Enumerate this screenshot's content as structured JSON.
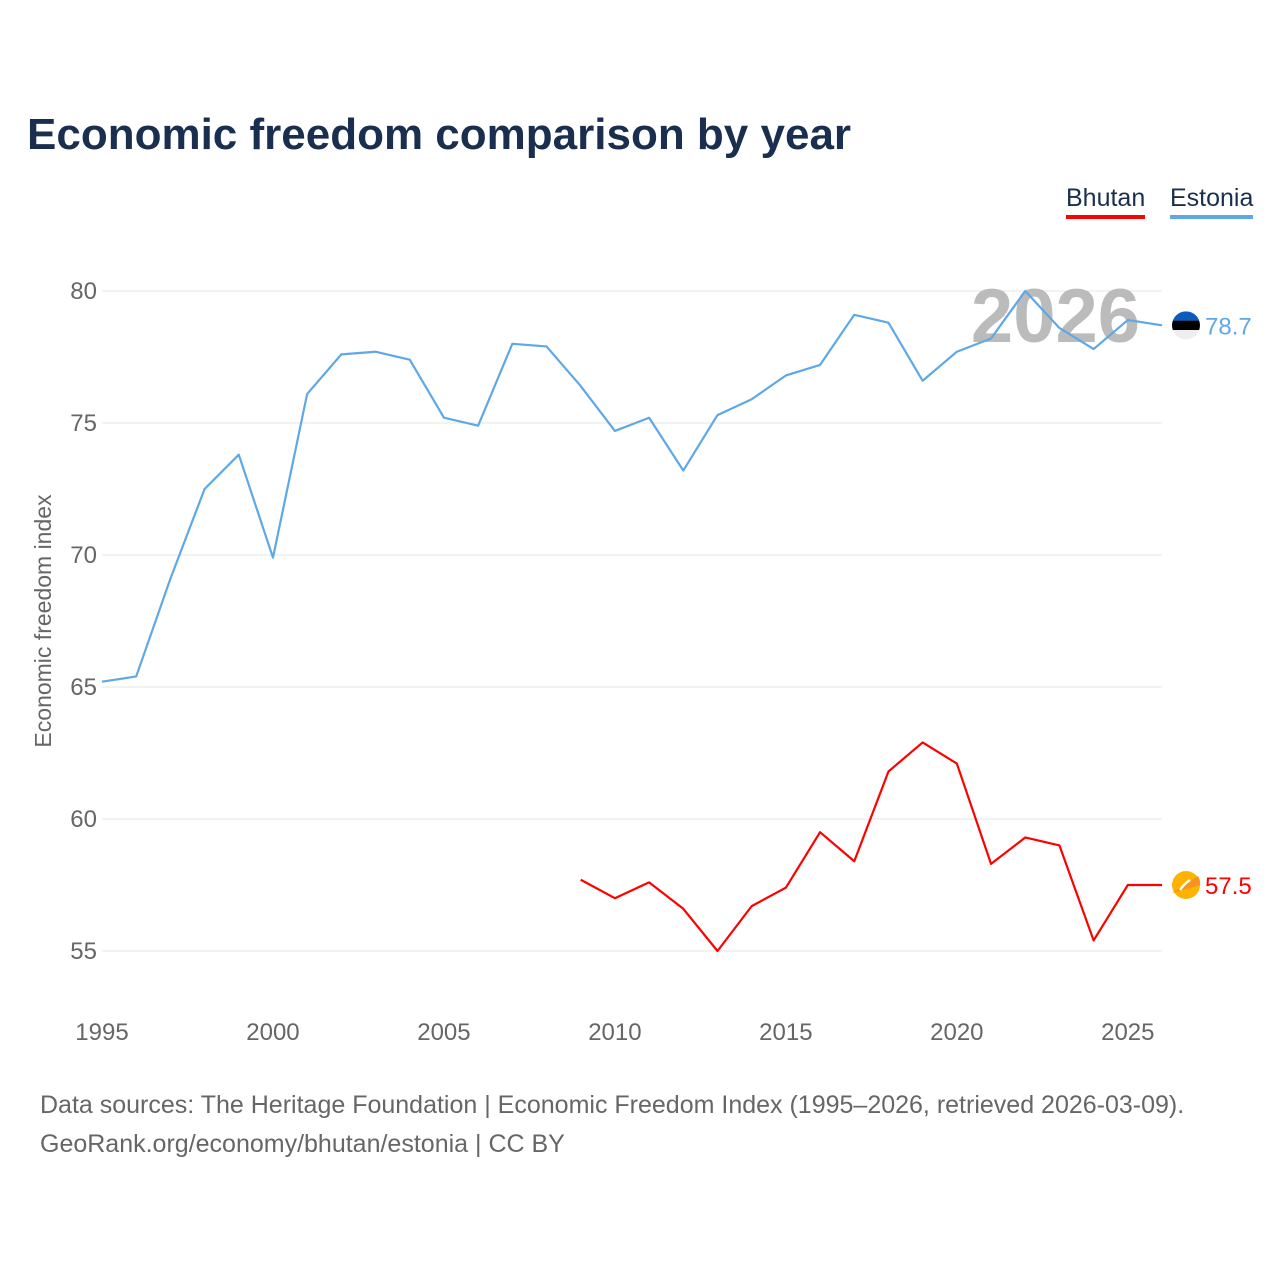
{
  "chart_data": {
    "type": "line",
    "title": "Economic freedom comparison by year",
    "xlabel": "",
    "ylabel": "Economic freedom index",
    "xlim": [
      1995,
      2026
    ],
    "ylim": [
      55,
      80
    ],
    "x_ticks": [
      "1995",
      "2000",
      "2005",
      "2010",
      "2015",
      "2020",
      "2025"
    ],
    "y_ticks": [
      "55",
      "60",
      "65",
      "70",
      "75",
      "80"
    ],
    "grid": true,
    "legend_placement": "top-right",
    "highlight_year": "2026",
    "series": [
      {
        "name": "Bhutan",
        "color": "#ff0000",
        "end_label": "57.5",
        "flag": "bhutan-flag",
        "x": [
          2009,
          2010,
          2011,
          2012,
          2013,
          2014,
          2015,
          2016,
          2017,
          2018,
          2019,
          2020,
          2021,
          2022,
          2023,
          2024,
          2025,
          2026
        ],
        "values": [
          57.7,
          57.0,
          57.6,
          56.6,
          55.0,
          56.7,
          57.4,
          59.5,
          58.4,
          61.8,
          62.9,
          62.1,
          58.3,
          59.3,
          59.0,
          55.4,
          57.5,
          57.5
        ]
      },
      {
        "name": "Estonia",
        "color": "#5fa8e8",
        "end_label": "78.7",
        "flag": "estonia-flag",
        "x": [
          1995,
          1996,
          1997,
          1998,
          1999,
          2000,
          2001,
          2002,
          2003,
          2004,
          2005,
          2006,
          2007,
          2008,
          2009,
          2010,
          2011,
          2012,
          2013,
          2014,
          2015,
          2016,
          2017,
          2018,
          2019,
          2020,
          2021,
          2022,
          2023,
          2024,
          2025,
          2026
        ],
        "values": [
          65.2,
          65.4,
          69.1,
          72.5,
          73.8,
          69.9,
          76.1,
          77.6,
          77.7,
          77.4,
          75.2,
          74.9,
          78.0,
          77.9,
          76.4,
          74.7,
          75.2,
          73.2,
          75.3,
          75.9,
          76.8,
          77.2,
          79.1,
          78.8,
          76.6,
          77.7,
          78.2,
          80.0,
          78.6,
          77.8,
          78.9,
          78.7
        ]
      }
    ]
  },
  "source": {
    "line1": "Data sources: The Heritage Foundation | Economic Freedom Index (1995–2026, retrieved 2026-03-09).",
    "line2": "GeoRank.org/economy/bhutan/estonia | CC BY"
  }
}
